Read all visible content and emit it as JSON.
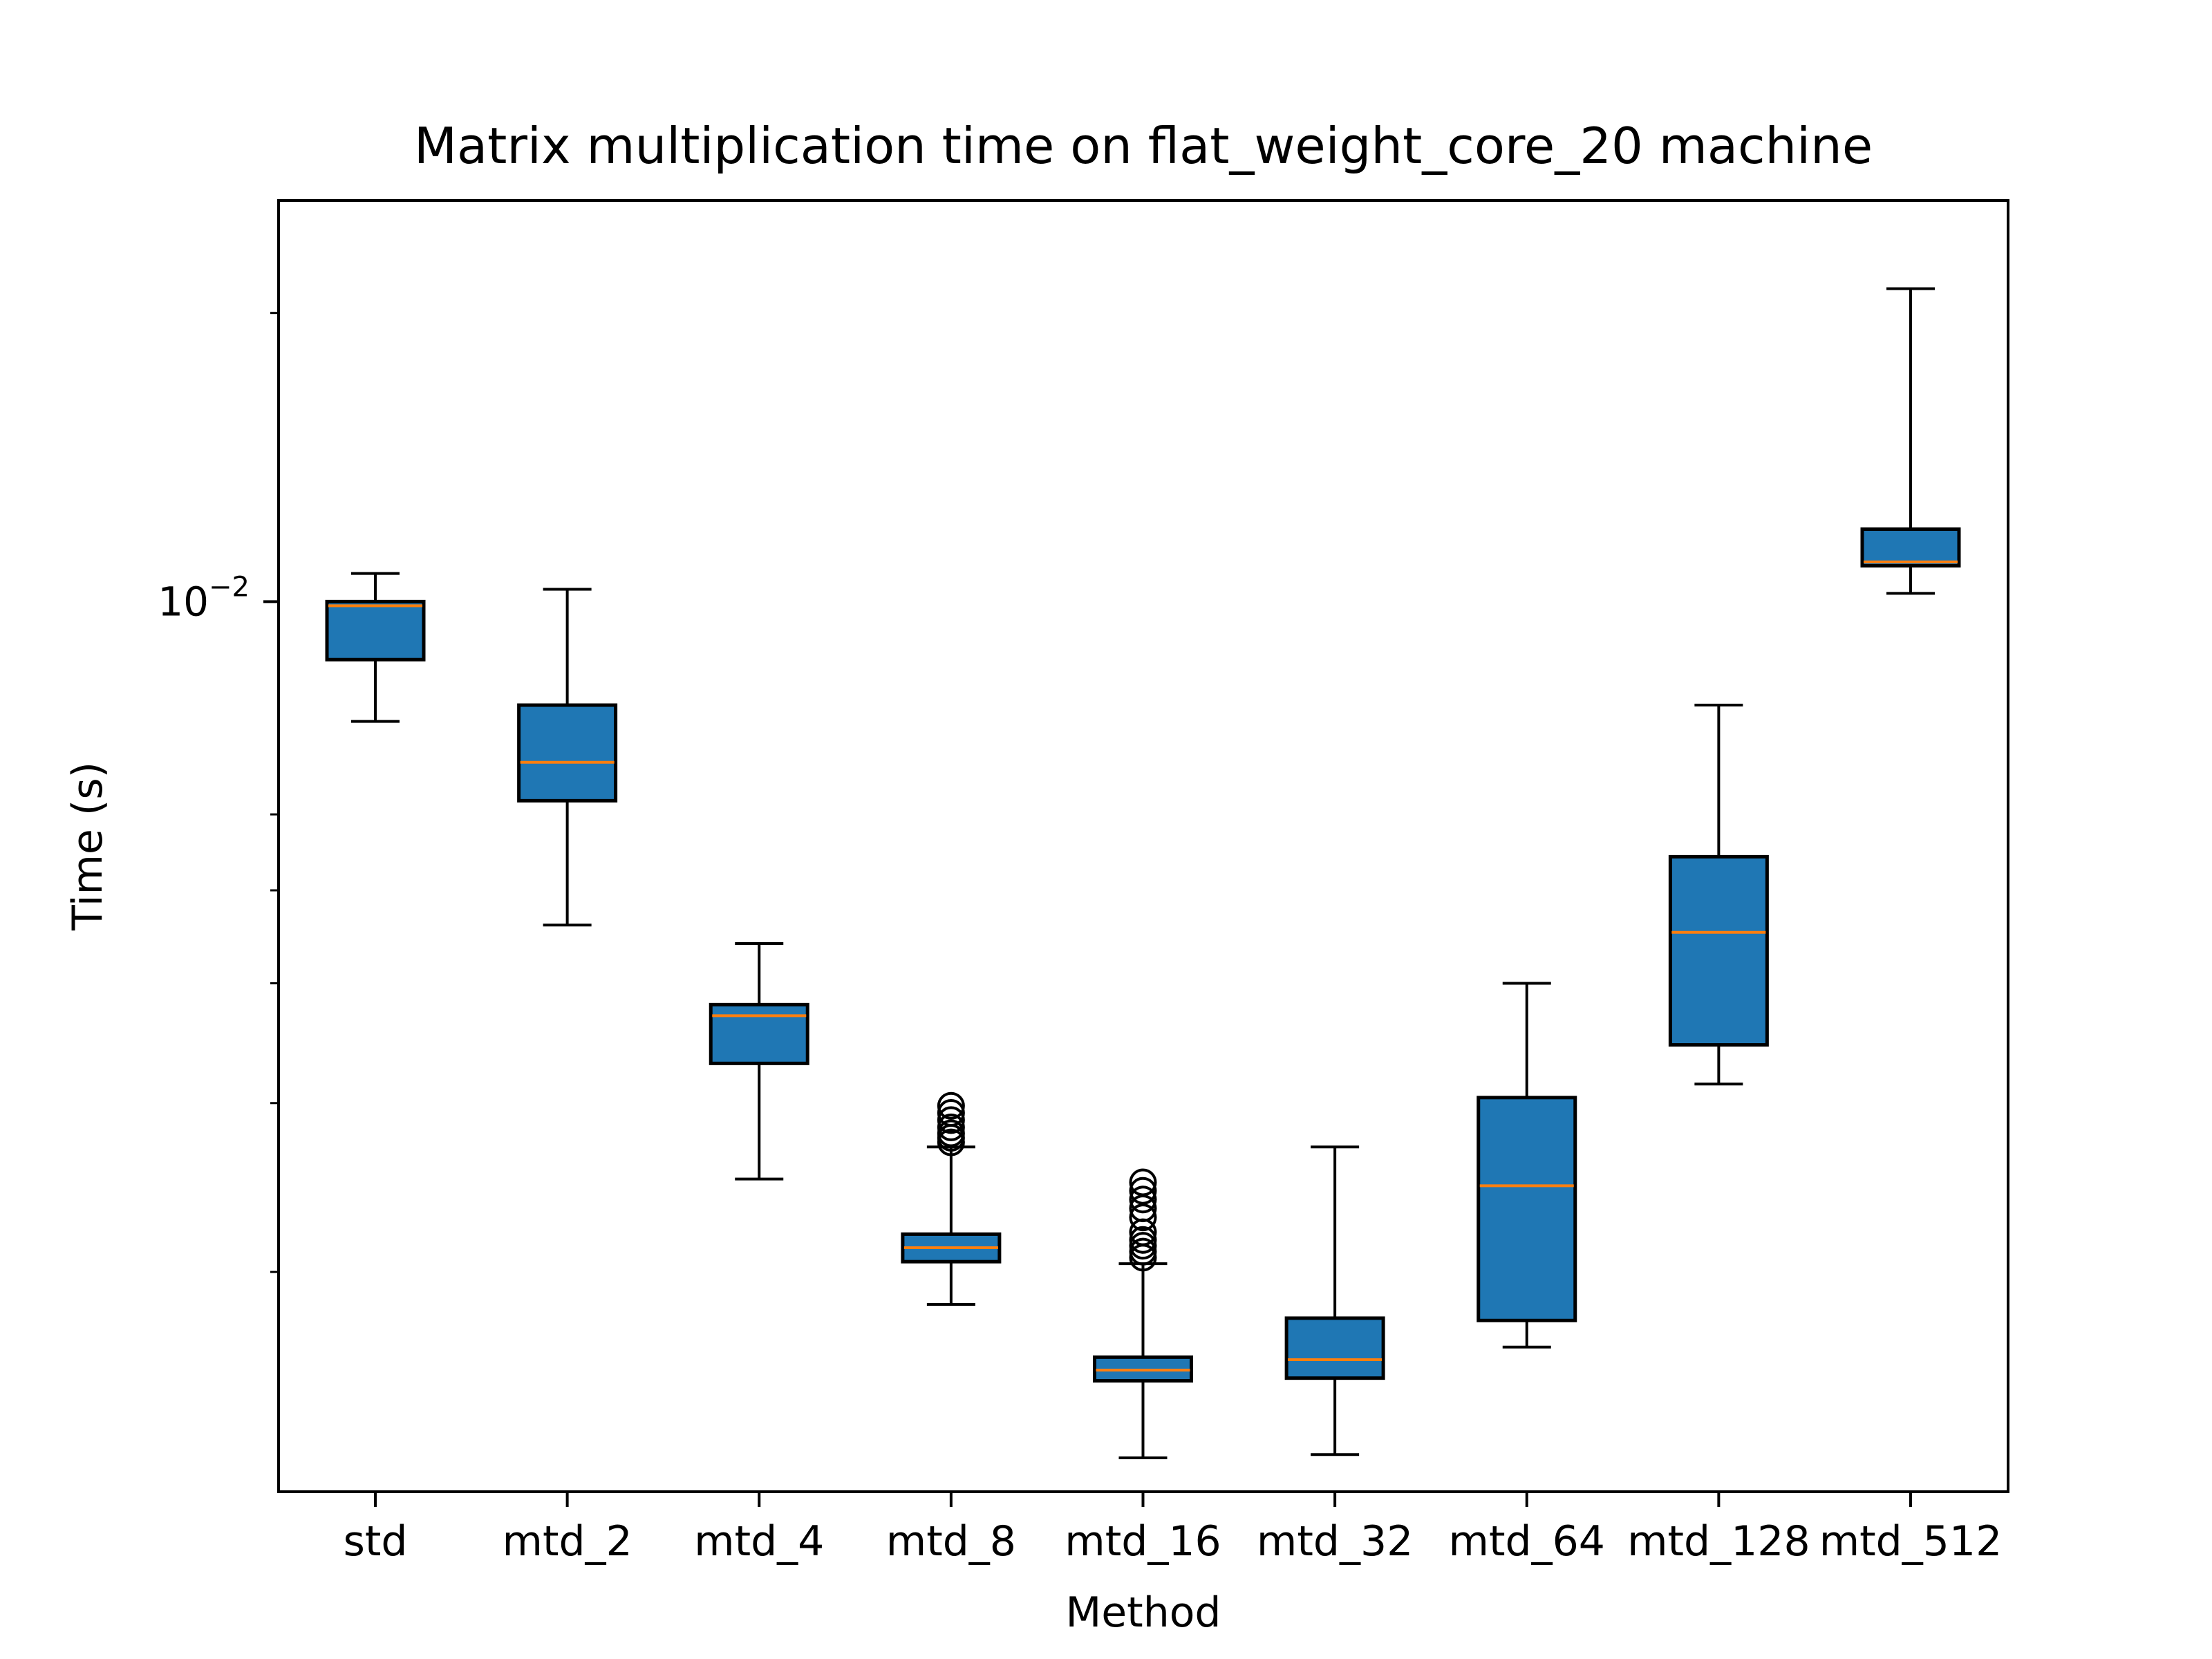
{
  "chart_data": {
    "type": "box",
    "title": "Matrix multiplication time on flat_weight_core_20 machine",
    "xlabel": "Method",
    "ylabel": "Time (s)",
    "yscale": "log",
    "ylim": [
      0.00118,
      0.0262
    ],
    "y_major_ticks": [
      {
        "value": 0.01,
        "label_base": "10",
        "label_exp": "−2"
      }
    ],
    "y_minor_ticks": [
      0.002,
      0.003,
      0.004,
      0.005,
      0.006,
      0.02
    ],
    "grid": false,
    "colors": {
      "box_fill": "#1f77b4",
      "median": "#ff7f0e",
      "edge": "#000000"
    },
    "categories": [
      "std",
      "mtd_2",
      "mtd_4",
      "mtd_8",
      "mtd_16",
      "mtd_32",
      "mtd_64",
      "mtd_128",
      "mtd_512"
    ],
    "boxes": [
      {
        "label": "std",
        "whisker_low": 0.0075,
        "q1": 0.0087,
        "median": 0.0099,
        "q3": 0.01,
        "whisker_high": 0.0107,
        "outliers": []
      },
      {
        "label": "mtd_2",
        "whisker_low": 0.0046,
        "q1": 0.0062,
        "median": 0.0068,
        "q3": 0.0078,
        "whisker_high": 0.0103,
        "outliers": []
      },
      {
        "label": "mtd_4",
        "whisker_low": 0.0025,
        "q1": 0.0033,
        "median": 0.0037,
        "q3": 0.0038,
        "whisker_high": 0.0044,
        "outliers": []
      },
      {
        "label": "mtd_8",
        "whisker_low": 0.00185,
        "q1": 0.00205,
        "median": 0.00212,
        "q3": 0.00219,
        "whisker_high": 0.0027,
        "outliers": [
          0.00273,
          0.00276,
          0.00279,
          0.00283,
          0.00288,
          0.00293,
          0.00298
        ]
      },
      {
        "label": "mtd_16",
        "whisker_low": 0.00128,
        "q1": 0.00154,
        "median": 0.00158,
        "q3": 0.00163,
        "whisker_high": 0.00204,
        "outliers": [
          0.00207,
          0.0021,
          0.00213,
          0.00216,
          0.0022,
          0.00228,
          0.00233,
          0.00238,
          0.00243,
          0.00248
        ]
      },
      {
        "label": "mtd_32",
        "whisker_low": 0.00129,
        "q1": 0.00155,
        "median": 0.00162,
        "q3": 0.00179,
        "whisker_high": 0.0027,
        "outliers": []
      },
      {
        "label": "mtd_64",
        "whisker_low": 0.00167,
        "q1": 0.00178,
        "median": 0.00246,
        "q3": 0.00304,
        "whisker_high": 0.004,
        "outliers": []
      },
      {
        "label": "mtd_128",
        "whisker_low": 0.00314,
        "q1": 0.00345,
        "median": 0.00452,
        "q3": 0.00542,
        "whisker_high": 0.0078,
        "outliers": []
      },
      {
        "label": "mtd_512",
        "whisker_low": 0.0102,
        "q1": 0.0109,
        "median": 0.011,
        "q3": 0.0119,
        "whisker_high": 0.0212,
        "outliers": []
      }
    ]
  }
}
